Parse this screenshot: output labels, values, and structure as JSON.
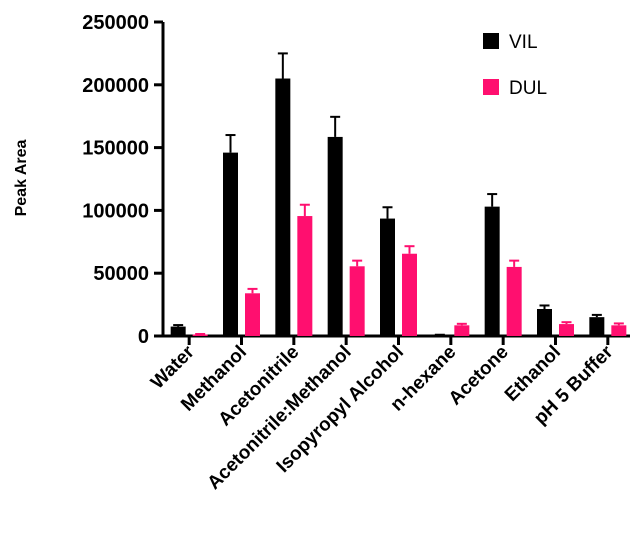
{
  "chart_data": {
    "type": "bar",
    "ylabel": "Peak Area",
    "xlabel": "",
    "ylim": [
      0,
      250000
    ],
    "yticks": [
      "0",
      "50000",
      "100000",
      "150000",
      "200000",
      "250000"
    ],
    "categories": [
      "Water",
      "Methanol",
      "Acetonitrile",
      "Acetonitrile:Methanol",
      "Isopyropyl Alcohol",
      "n-hexane",
      "Acetone",
      "Ethanol",
      "pH 5 Buffer"
    ],
    "series": [
      {
        "name": "VIL",
        "color": "#000000",
        "values": [
          7500,
          146000,
          205000,
          158500,
          93500,
          700,
          103000,
          21500,
          15000
        ],
        "errors": [
          1200,
          14000,
          20000,
          16000,
          9000,
          300,
          10000,
          2800,
          1800
        ]
      },
      {
        "name": "DUL",
        "color": "#ff0f6f",
        "values": [
          1200,
          34000,
          95500,
          55500,
          65500,
          8500,
          55000,
          9500,
          8500
        ],
        "errors": [
          400,
          3500,
          9000,
          4500,
          6000,
          1200,
          5000,
          1500,
          1500
        ]
      }
    ],
    "legend_position": "top-right",
    "grid": false,
    "error_bars": "upper"
  }
}
